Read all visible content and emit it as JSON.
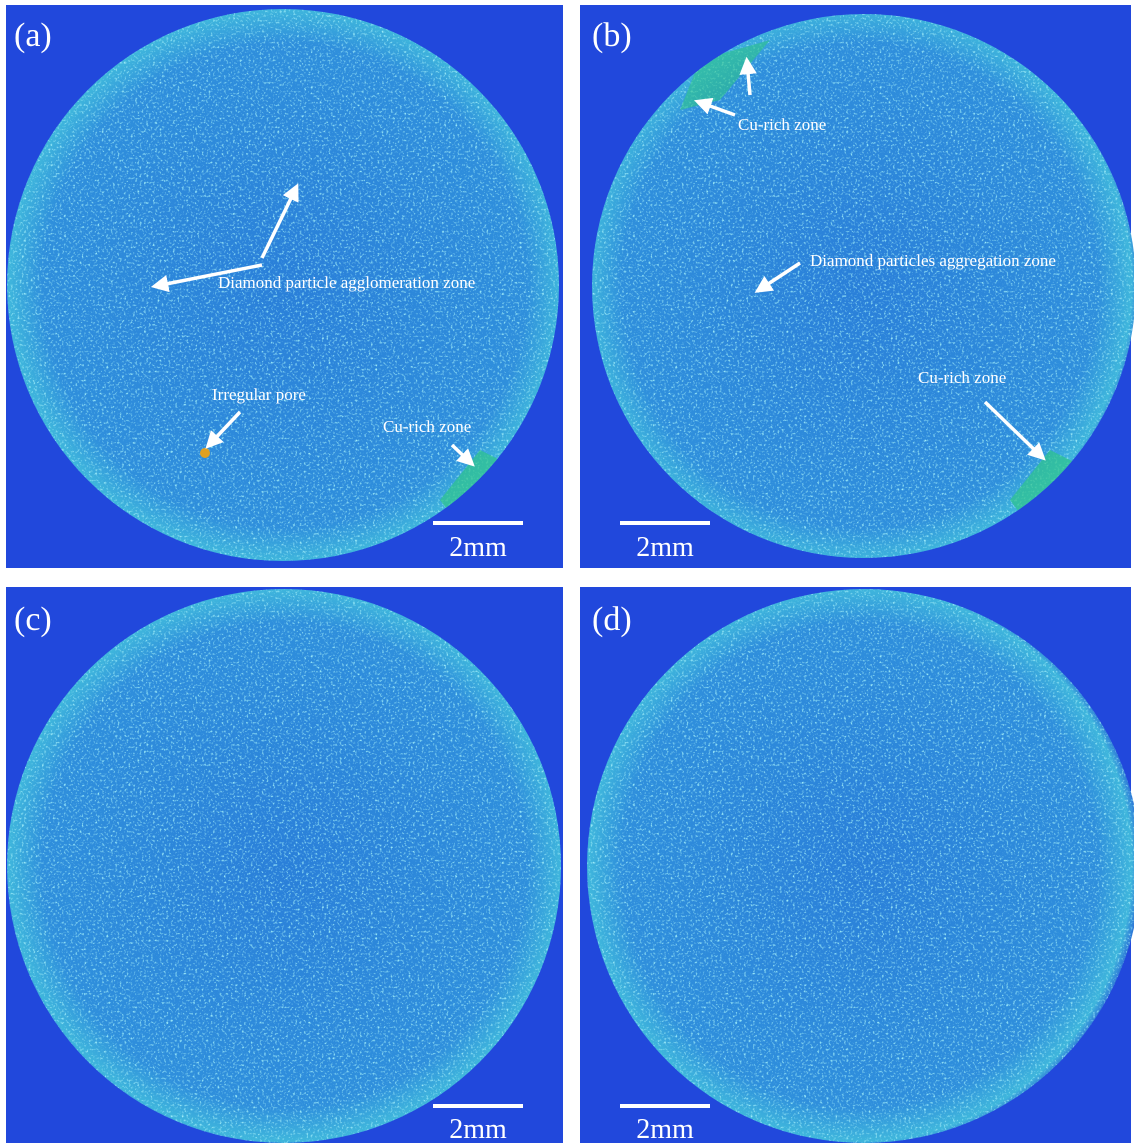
{
  "panels": [
    {
      "label": "(a)",
      "annotations": [
        "Diamond particle agglomeration zone",
        "Irregular pore",
        "Cu-rich zone"
      ],
      "scale_bar": "2mm"
    },
    {
      "label": "(b)",
      "annotations": [
        "Cu-rich zone",
        "Diamond particles aggregation zone",
        "Cu-rich zone"
      ],
      "scale_bar": "2mm"
    },
    {
      "label": "(c)",
      "annotations": [],
      "scale_bar": "2mm"
    },
    {
      "label": "(d)",
      "annotations": [],
      "scale_bar": "2mm"
    }
  ]
}
